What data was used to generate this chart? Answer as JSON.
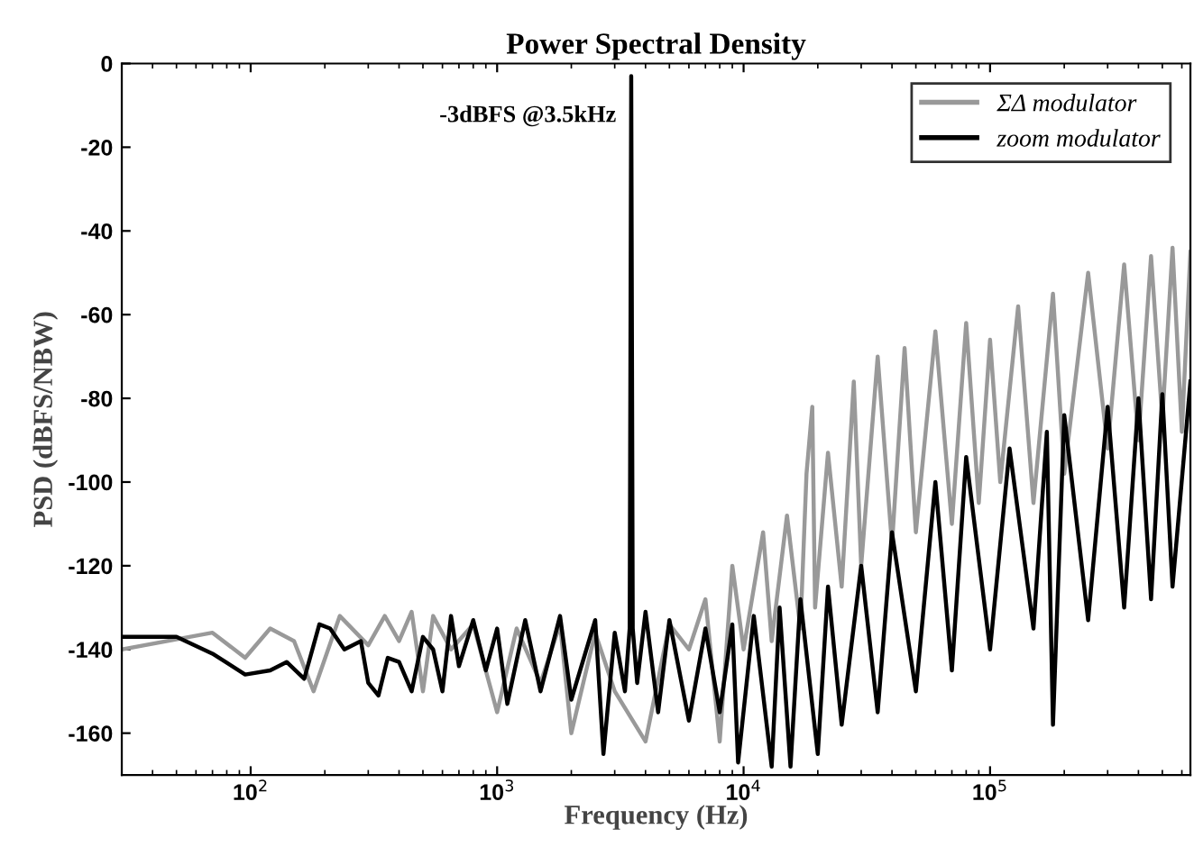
{
  "chart_data": {
    "type": "line",
    "title": "Power Spectral Density",
    "xlabel": "Frequency (Hz)",
    "ylabel": "PSD (dBFS/NBW)",
    "log": "x",
    "grid": false,
    "legend": "top right",
    "xlim": [
      30,
      650000
    ],
    "ylim": [
      -170,
      0
    ],
    "xticks": [
      {
        "value": 100,
        "label": "10$^{2}$"
      },
      {
        "value": 1000,
        "label": "10$^{3}$"
      },
      {
        "value": 10000,
        "label": "10$^{4}$"
      },
      {
        "value": 100000,
        "label": "10$^{5}$"
      }
    ],
    "yticks": [
      -160,
      -140,
      -120,
      -100,
      -80,
      -60,
      -40,
      -20,
      0
    ],
    "annotations": [
      {
        "text": "-3dBFS @3.5kHz",
        "x": 3500,
        "y": -3
      }
    ],
    "series": [
      {
        "name": "ΣΔ modulator",
        "color": "#999999",
        "x": [
          30,
          70,
          95,
          120,
          150,
          180,
          230,
          300,
          350,
          400,
          450,
          500,
          550,
          650,
          800,
          1000,
          1200,
          1500,
          1800,
          2000,
          2500,
          3000,
          4000,
          5000,
          6000,
          7000,
          8000,
          9000,
          10000,
          12000,
          13000,
          15000,
          17000,
          18000,
          19000,
          19500,
          22000,
          25000,
          28000,
          30000,
          35000,
          40000,
          45000,
          50000,
          60000,
          70000,
          80000,
          90000,
          100000,
          110000,
          130000,
          150000,
          180000,
          200000,
          250000,
          300000,
          350000,
          400000,
          450000,
          500000,
          550000,
          600000,
          650000
        ],
        "values": [
          -140,
          -136,
          -142,
          -135,
          -138,
          -150,
          -132,
          -139,
          -132,
          -138,
          -131,
          -150,
          -132,
          -140,
          -134,
          -155,
          -135,
          -148,
          -134,
          -160,
          -136,
          -150,
          -162,
          -134,
          -140,
          -128,
          -162,
          -120,
          -140,
          -112,
          -138,
          -108,
          -135,
          -98,
          -82,
          -130,
          -93,
          -125,
          -76,
          -120,
          -70,
          -115,
          -68,
          -112,
          -64,
          -110,
          -62,
          -105,
          -66,
          -100,
          -58,
          -105,
          -55,
          -98,
          -50,
          -92,
          -48,
          -90,
          -46,
          -85,
          -44,
          -88,
          -45
        ]
      },
      {
        "name": "zoom modulator",
        "color": "#000000",
        "x": [
          30,
          50,
          70,
          95,
          120,
          140,
          165,
          190,
          210,
          240,
          280,
          300,
          330,
          360,
          400,
          450,
          500,
          550,
          600,
          650,
          700,
          800,
          900,
          1000,
          1100,
          1300,
          1500,
          1800,
          2000,
          2500,
          2700,
          3000,
          3300,
          3450,
          3500,
          3550,
          3700,
          4000,
          4500,
          5000,
          6000,
          7000,
          8000,
          9000,
          9500,
          11000,
          13000,
          14000,
          15500,
          17000,
          20000,
          22000,
          25000,
          30000,
          35000,
          40000,
          50000,
          60000,
          70000,
          80000,
          100000,
          120000,
          150000,
          170000,
          180000,
          200000,
          250000,
          300000,
          350000,
          400000,
          450000,
          500000,
          550000,
          650000
        ],
        "values": [
          -137,
          -137,
          -141,
          -146,
          -145,
          -143,
          -147,
          -134,
          -135,
          -140,
          -138,
          -148,
          -151,
          -142,
          -143,
          -150,
          -137,
          -140,
          -150,
          -132,
          -144,
          -133,
          -145,
          -135,
          -153,
          -133,
          -150,
          -132,
          -152,
          -133,
          -165,
          -136,
          -150,
          -135,
          -3,
          -135,
          -148,
          -131,
          -155,
          -133,
          -157,
          -135,
          -155,
          -134,
          -167,
          -132,
          -168,
          -130,
          -168,
          -128,
          -165,
          -125,
          -158,
          -120,
          -155,
          -112,
          -150,
          -100,
          -145,
          -94,
          -140,
          -92,
          -135,
          -88,
          -158,
          -84,
          -133,
          -82,
          -130,
          -80,
          -128,
          -79,
          -125,
          -76
        ]
      }
    ]
  }
}
